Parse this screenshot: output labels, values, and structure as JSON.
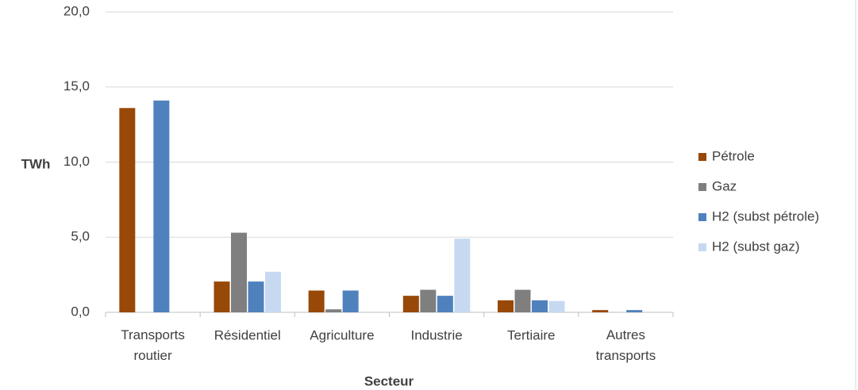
{
  "chart_data": {
    "type": "bar",
    "y_label": "TWh",
    "x_label": "Secteur",
    "categories": [
      "Transports routier",
      "Résidentiel",
      "Agriculture",
      "Industrie",
      "Tertiaire",
      "Autres transports"
    ],
    "series": [
      {
        "name": "Pétrole",
        "color": "#984807",
        "values": [
          13.6,
          2.05,
          1.45,
          1.1,
          0.8,
          0.15
        ]
      },
      {
        "name": "Gaz",
        "color": "#7f7f7f",
        "values": [
          0,
          5.3,
          0.2,
          1.5,
          1.5,
          0
        ]
      },
      {
        "name": "H2 (subst pétrole)",
        "color": "#4f81bd",
        "values": [
          14.1,
          2.05,
          1.45,
          1.1,
          0.8,
          0.15
        ]
      },
      {
        "name": "H2 (subst gaz)",
        "color": "#c6d9f1",
        "values": [
          0,
          2.7,
          0,
          4.9,
          0.75,
          0
        ]
      }
    ],
    "ylim": [
      0,
      20
    ],
    "yticks": [
      {
        "value": 0,
        "label": "0,0"
      },
      {
        "value": 5,
        "label": "5,0"
      },
      {
        "value": 10,
        "label": "10,0"
      },
      {
        "value": 15,
        "label": "15,0"
      },
      {
        "value": 20,
        "label": "20,0"
      }
    ],
    "grid": true,
    "legend": "right"
  }
}
